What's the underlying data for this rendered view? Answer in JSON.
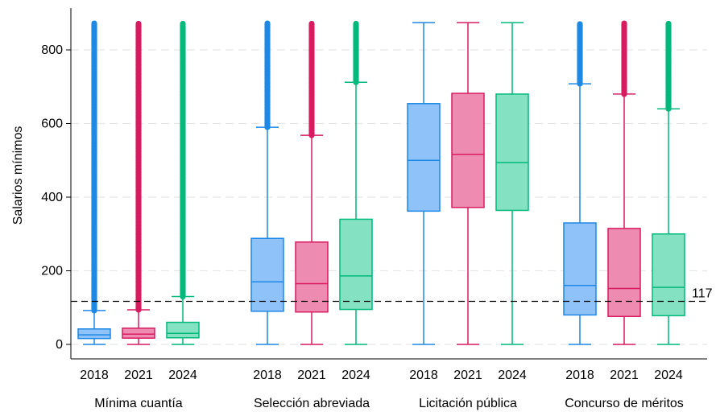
{
  "chart_data": {
    "type": "box",
    "ylabel": "Salarios mínimos",
    "ylim": [
      0,
      880
    ],
    "yticks": [
      0,
      200,
      400,
      600,
      800
    ],
    "grid": "horizontal-dashed",
    "reference_line": {
      "value": 117,
      "label": "117"
    },
    "series_colors": {
      "2018": {
        "stroke": "#1E88E5",
        "fill": "#90C2FA"
      },
      "2021": {
        "stroke": "#D81B60",
        "fill": "#EE8BB0"
      },
      "2024": {
        "stroke": "#00B97A",
        "fill": "#84E2C3"
      }
    },
    "groups": [
      {
        "label": "Mínima cuantía",
        "boxes": [
          {
            "year": "2018",
            "min": 0,
            "q1": 16,
            "median": 26,
            "q3": 42,
            "whisker_high": 92,
            "outlier_range": [
              92,
              872
            ]
          },
          {
            "year": "2021",
            "min": 0,
            "q1": 17,
            "median": 28,
            "q3": 44,
            "whisker_high": 94,
            "outlier_range": [
              94,
              872
            ]
          },
          {
            "year": "2024",
            "min": 0,
            "q1": 18,
            "median": 30,
            "q3": 60,
            "whisker_high": 130,
            "outlier_range": [
              130,
              872
            ]
          }
        ]
      },
      {
        "label": "Selección abreviada",
        "boxes": [
          {
            "year": "2018",
            "min": 0,
            "q1": 90,
            "median": 170,
            "q3": 288,
            "whisker_high": 590,
            "outlier_range": [
              590,
              872
            ]
          },
          {
            "year": "2021",
            "min": 0,
            "q1": 88,
            "median": 165,
            "q3": 278,
            "whisker_high": 568,
            "outlier_range": [
              568,
              872
            ]
          },
          {
            "year": "2024",
            "min": 0,
            "q1": 95,
            "median": 186,
            "q3": 340,
            "whisker_high": 712,
            "outlier_range": [
              712,
              872
            ]
          }
        ]
      },
      {
        "label": "Licitación pública",
        "boxes": [
          {
            "year": "2018",
            "min": 0,
            "q1": 362,
            "median": 500,
            "q3": 654,
            "whisker_high": 874,
            "outlier_range": null
          },
          {
            "year": "2021",
            "min": 0,
            "q1": 372,
            "median": 516,
            "q3": 682,
            "whisker_high": 874,
            "outlier_range": null
          },
          {
            "year": "2024",
            "min": 0,
            "q1": 364,
            "median": 494,
            "q3": 680,
            "whisker_high": 874,
            "outlier_range": null
          }
        ]
      },
      {
        "label": "Concurso de méritos",
        "boxes": [
          {
            "year": "2018",
            "min": 0,
            "q1": 80,
            "median": 160,
            "q3": 330,
            "whisker_high": 708,
            "outlier_range": [
              708,
              872
            ]
          },
          {
            "year": "2021",
            "min": 0,
            "q1": 76,
            "median": 152,
            "q3": 315,
            "whisker_high": 680,
            "outlier_range": [
              680,
              872
            ]
          },
          {
            "year": "2024",
            "min": 0,
            "q1": 78,
            "median": 155,
            "q3": 300,
            "whisker_high": 640,
            "outlier_range": [
              640,
              872
            ]
          }
        ]
      }
    ]
  }
}
